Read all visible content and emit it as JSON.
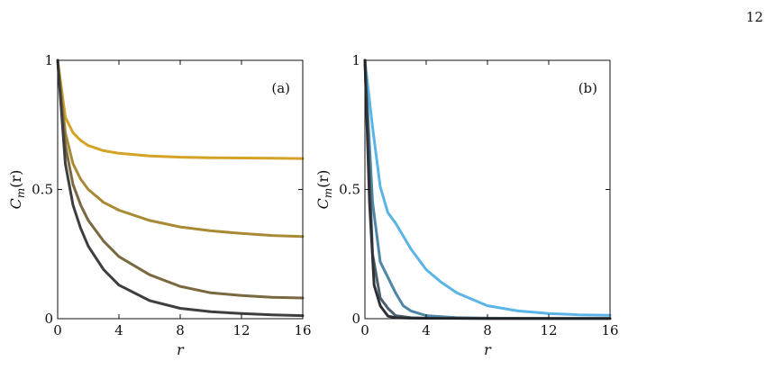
{
  "page": {
    "number": "12"
  },
  "chart_data": [
    {
      "type": "line",
      "panel_label": "(a)",
      "xlabel": "r",
      "ylabel": "C_m(r)",
      "xlim": [
        0,
        16
      ],
      "ylim": [
        0,
        1
      ],
      "x_ticks": [
        "0",
        "4",
        "8",
        "12",
        "16"
      ],
      "y_ticks": [
        "0",
        "0.5",
        "1"
      ],
      "grid": false,
      "series": [
        {
          "color": "#d4a325",
          "x": [
            0,
            0.5,
            1,
            1.5,
            2,
            3,
            4,
            6,
            8,
            10,
            12,
            14,
            16
          ],
          "y": [
            1,
            0.78,
            0.72,
            0.69,
            0.67,
            0.65,
            0.64,
            0.63,
            0.625,
            0.623,
            0.622,
            0.621,
            0.62
          ]
        },
        {
          "color": "#a88a35",
          "x": [
            0,
            0.5,
            1,
            1.5,
            2,
            3,
            4,
            6,
            8,
            10,
            12,
            14,
            16
          ],
          "y": [
            1,
            0.72,
            0.6,
            0.54,
            0.5,
            0.45,
            0.42,
            0.38,
            0.355,
            0.34,
            0.33,
            0.322,
            0.318
          ]
        },
        {
          "color": "#7a6840",
          "x": [
            0,
            0.5,
            1,
            1.5,
            2,
            3,
            4,
            6,
            8,
            10,
            12,
            14,
            16
          ],
          "y": [
            1,
            0.67,
            0.52,
            0.44,
            0.38,
            0.3,
            0.24,
            0.17,
            0.125,
            0.1,
            0.09,
            0.083,
            0.08
          ]
        },
        {
          "color": "#3e3e40",
          "x": [
            0,
            0.5,
            1,
            1.5,
            2,
            3,
            4,
            6,
            8,
            10,
            12,
            14,
            16
          ],
          "y": [
            1,
            0.6,
            0.44,
            0.35,
            0.28,
            0.19,
            0.13,
            0.07,
            0.04,
            0.027,
            0.02,
            0.015,
            0.012
          ]
        }
      ]
    },
    {
      "type": "line",
      "panel_label": "(b)",
      "xlabel": "r",
      "ylabel": "C_m(r)",
      "xlim": [
        0,
        16
      ],
      "ylim": [
        0,
        1
      ],
      "x_ticks": [
        "0",
        "4",
        "8",
        "12",
        "16"
      ],
      "y_ticks": [
        "0",
        "0.5",
        "1"
      ],
      "grid": false,
      "series": [
        {
          "color": "#5ab4e6",
          "x": [
            0,
            0.5,
            1,
            1.5,
            2,
            3,
            4,
            5,
            6,
            8,
            10,
            12,
            14,
            16
          ],
          "y": [
            1,
            0.74,
            0.51,
            0.41,
            0.37,
            0.27,
            0.19,
            0.14,
            0.1,
            0.05,
            0.03,
            0.02,
            0.015,
            0.013
          ]
        },
        {
          "color": "#4d86a6",
          "x": [
            0,
            0.5,
            1,
            1.5,
            2,
            2.5,
            3,
            4,
            6,
            8,
            12,
            16
          ],
          "y": [
            1,
            0.45,
            0.22,
            0.16,
            0.1,
            0.05,
            0.03,
            0.012,
            0.004,
            0.002,
            0.001,
            0.001
          ]
        },
        {
          "color": "#4a5e6c",
          "x": [
            0,
            0.5,
            1,
            1.5,
            2,
            3,
            4,
            8,
            16
          ],
          "y": [
            1,
            0.25,
            0.08,
            0.04,
            0.012,
            0.004,
            0.002,
            0.001,
            0.001
          ]
        },
        {
          "color": "#2e3236",
          "x": [
            0,
            0.3,
            0.6,
            1,
            1.5,
            2,
            3,
            8,
            16
          ],
          "y": [
            1,
            0.45,
            0.13,
            0.05,
            0.01,
            0.004,
            0.002,
            0.001,
            0.001
          ]
        }
      ]
    }
  ]
}
